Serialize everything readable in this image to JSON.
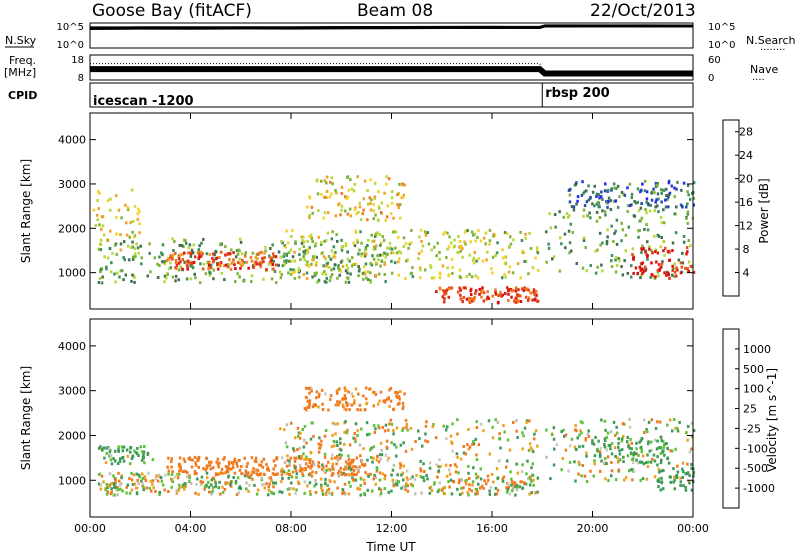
{
  "header": {
    "station": "Goose Bay (fitACF)",
    "beam": "Beam 08",
    "date": "22/Oct/2013"
  },
  "left_labels": {
    "nsky": "N.Sky",
    "freq_line1": "Freq.",
    "freq_line2": "[MHz]",
    "cpid": "CPID"
  },
  "right_labels": {
    "nsearch": "N.Search",
    "nsearch_dots": "........",
    "nave": "Nave",
    "nave_dots": "...."
  },
  "cpid_segments": [
    {
      "label": "icescan -1200",
      "start_hour": 0,
      "end_hour": 18
    },
    {
      "label": "rbsp 200",
      "start_hour": 18,
      "end_hour": 24
    }
  ],
  "colors": {
    "power": [
      "#2727f0",
      "#2c4aa8",
      "#3f6f4f",
      "#3d8f5a",
      "#7fb43b",
      "#b8d83a",
      "#f0d42a",
      "#f2a028",
      "#f07a20",
      "#e8541a",
      "#e02a1a",
      "#d81010"
    ],
    "velocity": [
      "#d81010",
      "#f03a10",
      "#f07a20",
      "#f0a020",
      "#c9c9c0",
      "#bdbdb4",
      "#5fc33a",
      "#3c9a55",
      "#2e6fa0",
      "#2c3ab0"
    ]
  },
  "chart_data": [
    {
      "type": "line",
      "name": "noise",
      "x": [
        0,
        2,
        4,
        6,
        8,
        10,
        12,
        14,
        16,
        17.9,
        18.1,
        20,
        22,
        24
      ],
      "series": [
        {
          "name": "N.Sky",
          "values": [
            10000,
            12000,
            11000,
            13000,
            12000,
            14000,
            15000,
            16000,
            17000,
            16000,
            40000,
            42000,
            40000,
            38000
          ]
        },
        {
          "name": "N.Search",
          "values": [
            20000,
            22000,
            21000,
            23000,
            22000,
            25000,
            26000,
            27000,
            28000,
            27000,
            60000,
            62000,
            60000,
            58000
          ]
        }
      ],
      "left_ticks": [
        "10^5",
        "10^0"
      ],
      "right_ticks": [
        "10^5",
        "10^0"
      ],
      "y_scale": "log"
    },
    {
      "type": "line",
      "name": "frequency",
      "x": [
        0,
        6,
        12,
        17.9,
        18.1,
        24
      ],
      "series": [
        {
          "name": "Freq",
          "values": [
            12.5,
            12.5,
            12.5,
            12.5,
            10.5,
            10.5
          ]
        },
        {
          "name": "Nave",
          "values": [
            42,
            42,
            42,
            42,
            12,
            14
          ]
        }
      ],
      "left_ticks": [
        "18",
        "8"
      ],
      "right_ticks": [
        "60",
        "0"
      ],
      "ylim_left": [
        8,
        18
      ],
      "ylim_right": [
        0,
        60
      ]
    },
    {
      "type": "heatmap",
      "name": "power",
      "x_ticks": [
        "00:00",
        "04:00",
        "08:00",
        "12:00",
        "16:00",
        "20:00",
        "00:00"
      ],
      "xlim_hours": [
        0,
        24
      ],
      "ylabel": "Slant Range [km]",
      "y_ticks": [
        "1000",
        "2000",
        "3000",
        "4000"
      ],
      "ylim": [
        180,
        4600
      ],
      "colorbar_label": "Power [dB]",
      "colorbar_ticks": [
        "4",
        "8",
        "12",
        "16",
        "20",
        "24",
        "28"
      ],
      "clim": [
        0,
        30
      ],
      "echo_regions": [
        {
          "t0": 0.3,
          "t1": 12.0,
          "r0": 800,
          "r1": 1800,
          "level": 10
        },
        {
          "t0": 3.0,
          "t1": 7.5,
          "r0": 1100,
          "r1": 1500,
          "level": 24
        },
        {
          "t0": 7.5,
          "t1": 17.8,
          "r0": 900,
          "r1": 2000,
          "level": 14
        },
        {
          "t0": 13.7,
          "t1": 17.8,
          "r0": 350,
          "r1": 700,
          "level": 25
        },
        {
          "t0": 18.1,
          "t1": 24.0,
          "r0": 900,
          "r1": 2500,
          "level": 10
        },
        {
          "t0": 21.5,
          "t1": 24.0,
          "r0": 900,
          "r1": 1600,
          "level": 28
        },
        {
          "t0": 0.1,
          "t1": 2.0,
          "r0": 1500,
          "r1": 2900,
          "level": 15
        },
        {
          "t0": 8.5,
          "t1": 12.5,
          "r0": 2200,
          "r1": 3200,
          "level": 16
        },
        {
          "t0": 19.0,
          "t1": 24.0,
          "r0": 2500,
          "r1": 3100,
          "level": 6
        }
      ]
    },
    {
      "type": "heatmap",
      "name": "velocity",
      "x_ticks": [
        "00:00",
        "04:00",
        "08:00",
        "12:00",
        "16:00",
        "20:00",
        "00:00"
      ],
      "xlim_hours": [
        0,
        24
      ],
      "xlabel": "Time UT",
      "ylabel": "Slant Range [km]",
      "y_ticks": [
        "1000",
        "2000",
        "3000",
        "4000"
      ],
      "ylim": [
        180,
        4600
      ],
      "colorbar_label": "Velocity [m s^-1]",
      "colorbar_ticks": [
        "1000",
        "500",
        "100",
        "25",
        "-25",
        "-100",
        "-500",
        "-1000"
      ],
      "clim": [
        -1000,
        1000
      ],
      "echo_regions": [
        {
          "t0": 0.3,
          "t1": 17.8,
          "r0": 700,
          "r1": 1200,
          "level": 0
        },
        {
          "t0": 3.0,
          "t1": 11.0,
          "r0": 1150,
          "r1": 1550,
          "level": -300
        },
        {
          "t0": 7.5,
          "t1": 17.8,
          "r0": 1200,
          "r1": 2400,
          "level": 0
        },
        {
          "t0": 0.3,
          "t1": 2.5,
          "r0": 1400,
          "r1": 1800,
          "level": 150
        },
        {
          "t0": 18.1,
          "t1": 24.0,
          "r0": 1000,
          "r1": 2400,
          "level": 0
        },
        {
          "t0": 20.0,
          "t1": 23.0,
          "r0": 1400,
          "r1": 2000,
          "level": 200
        },
        {
          "t0": 22.5,
          "t1": 24.0,
          "r0": 800,
          "r1": 1300,
          "level": 300
        },
        {
          "t0": 8.5,
          "t1": 12.5,
          "r0": 2600,
          "r1": 3100,
          "level": -200
        }
      ]
    }
  ]
}
